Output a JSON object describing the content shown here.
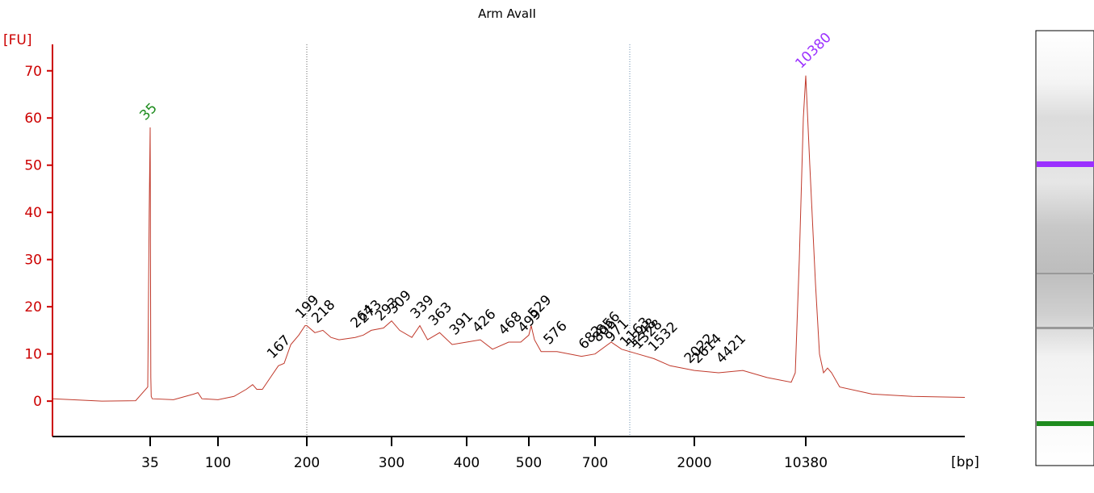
{
  "chart_data": {
    "type": "line",
    "title": "Arm AvaII",
    "y_label": "[FU]",
    "x_label": "[bp]",
    "xlim": [
      15,
      17000
    ],
    "xticks": [
      35,
      100,
      200,
      300,
      400,
      500,
      700,
      2000,
      10380
    ],
    "ylim": [
      -7.5,
      75.6
    ],
    "yticks": [
      0,
      10,
      20,
      30,
      40,
      50,
      60,
      70
    ],
    "series": [
      {
        "color": "#c0392b",
        "x": [
          15,
          25,
          32,
          34.5,
          34.8,
          35,
          35.3,
          35.6,
          36,
          37,
          57.4,
          76.8,
          80.7,
          84.6,
          100,
          118,
          131.8,
          139,
          143.6,
          150,
          159,
          168,
          174.5,
          182,
          191,
          198,
          200,
          209.5,
          219,
          228.6,
          238,
          257,
          266.7,
          276,
          290.5,
          300,
          310.8,
          327,
          337.6,
          348,
          364,
          380.6,
          400,
          422,
          441.6,
          467.5,
          487,
          500,
          507,
          517,
          537,
          585,
          659,
          700,
          911,
          1048,
          1260,
          1472,
          1683,
          2000,
          3822,
          5643,
          7465,
          9287,
          9590,
          9894,
          10196,
          10380,
          10548,
          10783,
          10951,
          11119,
          11287,
          11455,
          11791,
          13135,
          14815,
          17000
        ],
        "values": [
          0.5,
          0,
          0.1,
          3,
          40,
          58,
          30,
          5,
          1,
          0.5,
          0.3,
          1.5,
          1.8,
          0.5,
          0.3,
          1,
          2.5,
          3.5,
          2.5,
          2.5,
          5,
          7.5,
          8,
          12,
          14,
          16,
          16,
          14.5,
          15,
          13.5,
          13,
          13.5,
          14,
          15,
          15.5,
          17,
          15,
          13.5,
          16,
          13,
          14.5,
          12,
          12.5,
          13,
          11,
          12.5,
          12.5,
          14,
          16,
          13,
          10.5,
          10.5,
          9.5,
          10,
          12.5,
          11,
          10,
          9,
          7.5,
          6.5,
          6,
          6.5,
          5,
          4,
          6,
          30,
          60,
          69,
          50,
          25,
          10,
          6,
          7,
          6,
          3,
          1.5,
          1,
          0.8
        ]
      }
    ],
    "peaks": [
      {
        "x": 35,
        "y": 58,
        "color": "#1e8c1e"
      },
      {
        "x": 167,
        "y": 7.5,
        "color": "#000000"
      },
      {
        "x": 199,
        "y": 16,
        "color": "#000000"
      },
      {
        "x": 218,
        "y": 15,
        "color": "#000000"
      },
      {
        "x": 264,
        "y": 14,
        "color": "#000000"
      },
      {
        "x": 273,
        "y": 15,
        "color": "#000000"
      },
      {
        "x": 293,
        "y": 15.5,
        "color": "#000000"
      },
      {
        "x": 309,
        "y": 17,
        "color": "#000000"
      },
      {
        "x": 339,
        "y": 16,
        "color": "#000000"
      },
      {
        "x": 363,
        "y": 14.5,
        "color": "#000000"
      },
      {
        "x": 391,
        "y": 12.5,
        "color": "#000000"
      },
      {
        "x": 426,
        "y": 13,
        "color": "#000000"
      },
      {
        "x": 468,
        "y": 12.5,
        "color": "#000000"
      },
      {
        "x": 499,
        "y": 13,
        "color": "#000000"
      },
      {
        "x": 529,
        "y": 16,
        "color": "#000000"
      },
      {
        "x": 576,
        "y": 10.5,
        "color": "#000000"
      },
      {
        "x": 682,
        "y": 9.5,
        "color": "#000000"
      },
      {
        "x": 806,
        "y": 11,
        "color": "#000000"
      },
      {
        "x": 856,
        "y": 12.5,
        "color": "#000000"
      },
      {
        "x": 971,
        "y": 11,
        "color": "#000000"
      },
      {
        "x": 1163,
        "y": 10,
        "color": "#000000"
      },
      {
        "x": 1248,
        "y": 9.8,
        "color": "#000000"
      },
      {
        "x": 1328,
        "y": 9.5,
        "color": "#000000"
      },
      {
        "x": 1532,
        "y": 9,
        "color": "#000000"
      },
      {
        "x": 2022,
        "y": 6.5,
        "color": "#000000"
      },
      {
        "x": 2614,
        "y": 6.5,
        "color": "#000000"
      },
      {
        "x": 4421,
        "y": 6.5,
        "color": "#000000"
      },
      {
        "x": 10380,
        "y": 69,
        "color": "#9b30ff"
      }
    ]
  }
}
